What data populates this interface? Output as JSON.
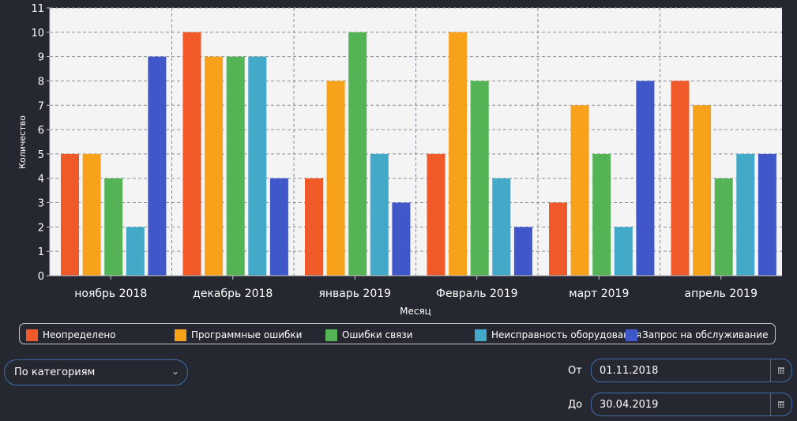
{
  "chart_data": {
    "type": "bar",
    "categories": [
      "ноябрь 2018",
      "декабрь 2018",
      "январь 2019",
      "Февраль 2019",
      "март 2019",
      "апрель 2019"
    ],
    "series": [
      {
        "name": "Неопределено",
        "color": "#f05a28",
        "values": [
          5,
          10,
          4,
          5,
          3,
          8
        ]
      },
      {
        "name": "Программные ошибки",
        "color": "#f8a21c",
        "values": [
          5,
          9,
          8,
          10,
          7,
          7
        ]
      },
      {
        "name": "Ошибки связи",
        "color": "#53b355",
        "values": [
          4,
          9,
          10,
          8,
          5,
          4
        ]
      },
      {
        "name": "Неисправность оборудования",
        "color": "#42a9c8",
        "values": [
          2,
          9,
          5,
          4,
          2,
          5
        ]
      },
      {
        "name": "Запрос на обслуживание",
        "color": "#3f57c8",
        "values": [
          9,
          4,
          3,
          2,
          8,
          5
        ]
      }
    ],
    "xlabel": "Месяц",
    "ylabel": "Количество",
    "ylim": [
      0,
      11
    ],
    "yticks": [
      "0",
      "1",
      "2",
      "3",
      "4",
      "5",
      "6",
      "7",
      "8",
      "9",
      "10",
      "11"
    ],
    "grid": true,
    "legend_position": "bottom"
  },
  "controls": {
    "mode_value": "По категориям",
    "from_label": "От",
    "from_value": "01.11.2018",
    "to_label": "До",
    "to_value": "30.04.2019"
  }
}
